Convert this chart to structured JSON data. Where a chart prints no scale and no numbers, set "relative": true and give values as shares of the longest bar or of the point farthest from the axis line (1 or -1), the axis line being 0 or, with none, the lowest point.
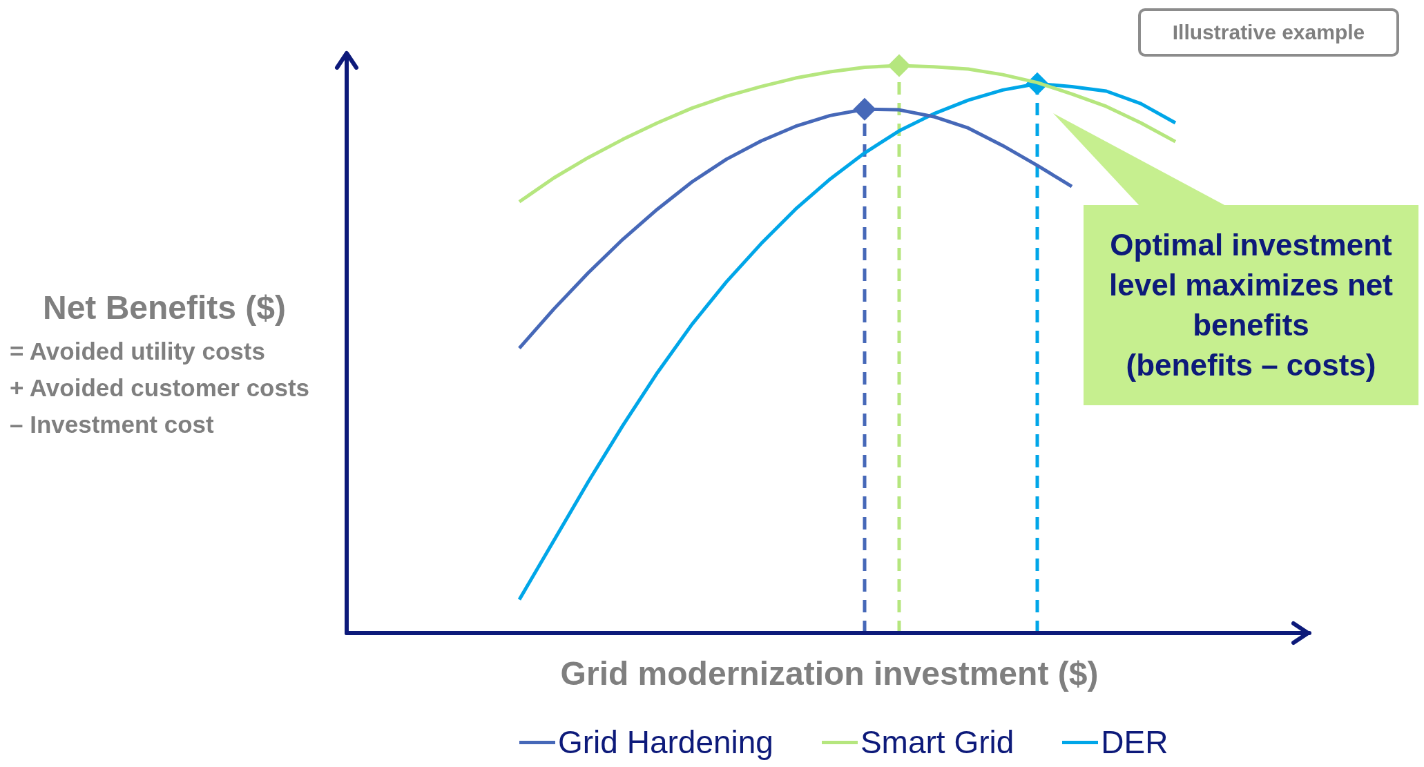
{
  "chart_data": {
    "type": "line",
    "relative": true,
    "xlabel": "Grid modernization investment ($)",
    "ylabel": "Net Benefits ($)",
    "legend": "bottom",
    "grid": false,
    "line_style": "solid",
    "categories": [
      null,
      null,
      null,
      null,
      null,
      null,
      null,
      null,
      null,
      null,
      null,
      null,
      null,
      null,
      null,
      null,
      null,
      null,
      null,
      null,
      null,
      null,
      null,
      null,
      null,
      null,
      null,
      null
    ],
    "annotations": [
      "Illustrative example",
      "= Avoided utility costs",
      "+ Avoided customer costs",
      "– Investment cost",
      "Optimal investment level maximizes net benefits\n(benefits – costs)"
    ],
    "series": [
      {
        "name": "Grid Hardening",
        "color": "#4668b8",
        "values": [
          null,
          null,
          null,
          null,
          null,
          0.502,
          0.571,
          0.635,
          0.694,
          0.747,
          0.795,
          0.835,
          0.867,
          0.893,
          0.912,
          0.923,
          0.922,
          0.91,
          0.89,
          0.859,
          0.824,
          0.787,
          null,
          null,
          null,
          null,
          null,
          null
        ]
      },
      {
        "name": "Smart Grid",
        "color": "#b5e67e",
        "values": [
          null,
          null,
          null,
          null,
          null,
          0.76,
          0.802,
          0.838,
          0.87,
          0.899,
          0.925,
          0.946,
          0.963,
          0.978,
          0.989,
          0.997,
          1.0,
          0.998,
          0.994,
          0.984,
          0.97,
          0.95,
          0.928,
          0.899,
          0.866,
          null,
          null,
          null
        ]
      },
      {
        "name": "DER",
        "color": "#00a6e8",
        "values": [
          null,
          null,
          null,
          null,
          null,
          0.059,
          0.163,
          0.267,
          0.366,
          0.459,
          0.544,
          0.619,
          0.686,
          0.747,
          0.8,
          0.846,
          0.885,
          0.915,
          0.939,
          0.957,
          0.968,
          0.963,
          0.955,
          0.933,
          0.899,
          null,
          null,
          null
        ]
      }
    ]
  }
}
